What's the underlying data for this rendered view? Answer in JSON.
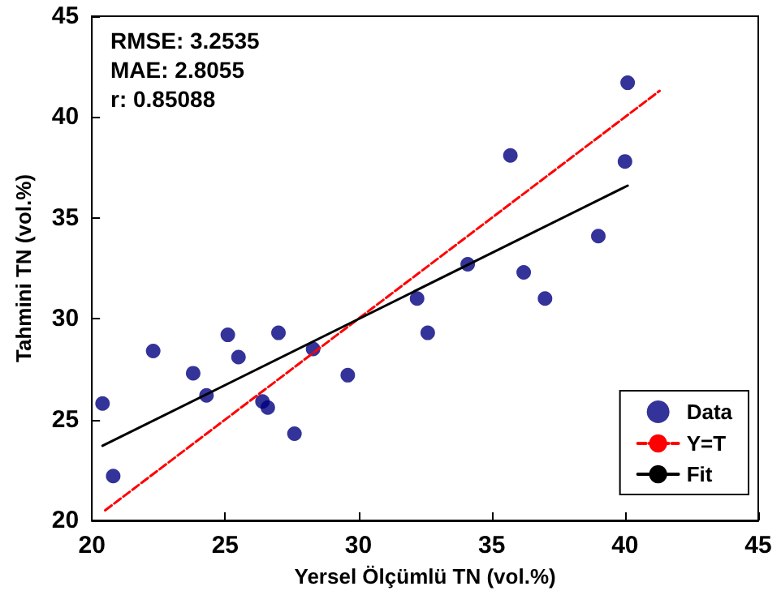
{
  "chart_data": {
    "type": "scatter",
    "xlabel": "Yersel Ölçümlü TN (vol.%)",
    "ylabel": "Tahmini TN (vol.%)",
    "annotations": [
      "RMSE: 3.2535",
      "MAE: 2.8055",
      "r: 0.85088"
    ],
    "xlim": [
      20,
      45
    ],
    "xticks": [
      20,
      25,
      30,
      35,
      40,
      45
    ],
    "ylim": [
      20,
      45
    ],
    "yticks": [
      20,
      25,
      30,
      35,
      40,
      45
    ],
    "grid": false,
    "legend": "bottom right",
    "marker": "circle",
    "series": [
      {
        "name": "Data",
        "color": "#00007f",
        "x": [
          20.4,
          20.8,
          22.3,
          23.8,
          24.3,
          25.1,
          25.5,
          26.4,
          26.6,
          27.0,
          27.6,
          28.3,
          29.6,
          32.2,
          32.6,
          34.1,
          35.7,
          36.2,
          37.0,
          39.0,
          40.0,
          40.1
        ],
        "values": [
          25.8,
          22.2,
          28.4,
          27.3,
          26.2,
          29.2,
          28.1,
          25.9,
          25.6,
          29.3,
          24.3,
          28.5,
          27.2,
          31.0,
          29.3,
          32.7,
          38.1,
          32.3,
          31.0,
          34.1,
          37.8,
          41.7
        ]
      },
      {
        "name": "Y=T",
        "type": "line",
        "color": "#ff0000",
        "line_style": "dashed",
        "marker": "none",
        "x": [
          20.5,
          41.3
        ],
        "values": [
          20.5,
          41.3
        ]
      },
      {
        "name": "Fit",
        "type": "line",
        "color": "#000000",
        "line_style": "solid",
        "marker": "none",
        "x": [
          20.4,
          40.1
        ],
        "values": [
          23.7,
          36.6
        ]
      }
    ]
  }
}
